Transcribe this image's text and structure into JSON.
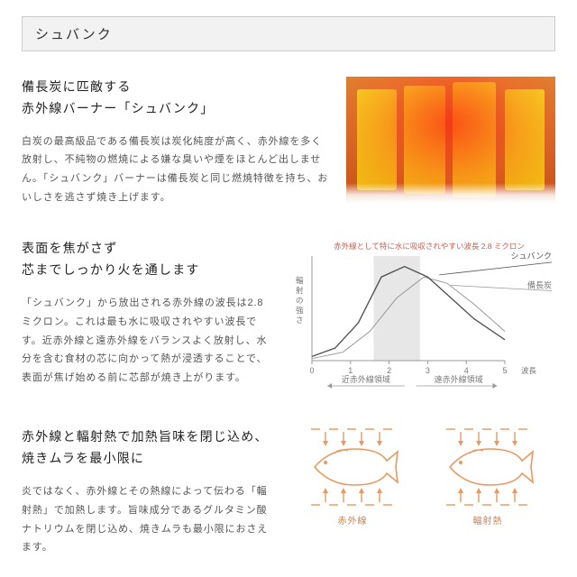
{
  "header": "シュバンク",
  "section1": {
    "title_l1": "備長炭に匹敵する",
    "title_l2": "赤外線バーナー「シュバンク」",
    "body": "白炭の最高級品である備長炭は炭化純度が高く、赤外線を多く放射し、不純物の燃焼による嫌な臭いや煙をほとんど出しません。「シュバンク」バーナーは備長炭と同じ燃焼特徴を持ち、おいしさを逃さず焼き上げます。"
  },
  "section2": {
    "title_l1": "表面を焦がさず",
    "title_l2": "芯までしっかり火を通します",
    "body": "「シュバンク」から放出される赤外線の波長は2.8ミクロン。これは最も水に吸収されやすい波長です。近赤外線と遠赤外線をバランスよく放射し、水分を含む食材の芯に向かって熱が浸透することで、表面が焦げ始める前に芯部が焼き上がります。",
    "chart": {
      "caption": "赤外線として特に水に吸収されやすい波長 2.8 ミクロン",
      "ylabel": "輻射の強さ",
      "xlabel": "波長",
      "xticks": [
        "0",
        "1",
        "2",
        "3",
        "4",
        "5"
      ],
      "bottom_left": "近赤外線領域",
      "bottom_right": "遠赤外線領域",
      "legend_schwank": "シュバンク",
      "legend_bincho": "備長炭",
      "colors": {
        "axis": "#999",
        "band": "#bbb",
        "schwank_line": "#555",
        "bincho_line": "#999",
        "caption": "#c86050"
      },
      "band_x": [
        1.6,
        2.8
      ],
      "schwank_curve": [
        [
          0,
          2
        ],
        [
          0.6,
          6
        ],
        [
          1.2,
          18
        ],
        [
          1.8,
          40
        ],
        [
          2.4,
          45
        ],
        [
          3.0,
          40
        ],
        [
          3.6,
          30
        ],
        [
          4.2,
          20
        ],
        [
          5.0,
          10
        ]
      ],
      "bincho_curve": [
        [
          0,
          1
        ],
        [
          0.8,
          4
        ],
        [
          1.5,
          14
        ],
        [
          2.2,
          30
        ],
        [
          2.9,
          40
        ],
        [
          3.5,
          37
        ],
        [
          4.2,
          27
        ],
        [
          5.0,
          14
        ]
      ]
    }
  },
  "section3": {
    "title_l1": "赤外線と輻射熱で加熱旨味を閉じ込め、",
    "title_l2": "焼きムラを最小限に",
    "body": "炎ではなく、赤外線とその熱線によって伝わる「輻射熱」で加熱します。旨味成分であるグルタミン酸ナトリウムを閉じ込め、焼きムラも最小限におさえます。",
    "fish_left_label": "赤外線",
    "fish_right_label": "輻射熱",
    "fish_color": "#e89860"
  }
}
